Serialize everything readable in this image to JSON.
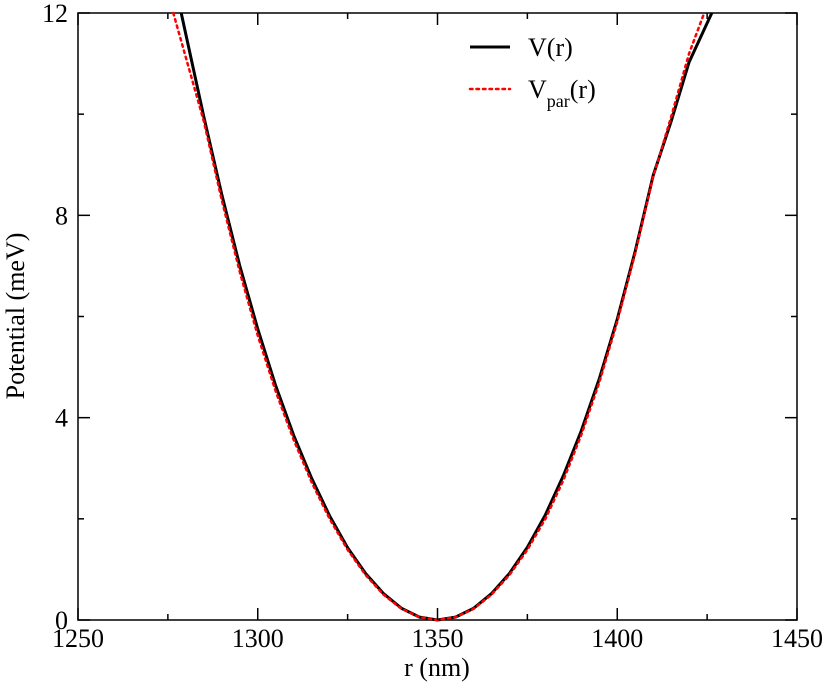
{
  "chart_data": {
    "type": "line",
    "title": "",
    "xlabel": "r (nm)",
    "ylabel": "Potential (meV)",
    "xlim": [
      1250,
      1450
    ],
    "ylim": [
      0,
      12
    ],
    "x_ticks": [
      1250,
      1300,
      1350,
      1400,
      1450
    ],
    "y_ticks": [
      0,
      4,
      8,
      12
    ],
    "x_tick_labels": [
      "1250",
      "1300",
      "1350",
      "1400",
      "1450"
    ],
    "y_tick_labels": [
      "0",
      "4",
      "8",
      "12"
    ],
    "grid": false,
    "legend_position": "top-right",
    "series": [
      {
        "name": "V(r)",
        "legend_main": "V",
        "legend_sub": "",
        "legend_tail": "(r)",
        "color": "#000000",
        "style": "solid",
        "x": [
          1278.7,
          1285,
          1290,
          1295,
          1300,
          1305,
          1310,
          1315,
          1320,
          1325,
          1330,
          1335,
          1340,
          1345,
          1350,
          1355,
          1360,
          1365,
          1370,
          1375,
          1380,
          1385,
          1390,
          1395,
          1400,
          1405,
          1410,
          1415,
          1420,
          1426.3
        ],
        "y": [
          12.0,
          9.95,
          8.41,
          7.0,
          5.75,
          4.63,
          3.65,
          2.8,
          2.06,
          1.43,
          0.92,
          0.52,
          0.23,
          0.057,
          0.0,
          0.057,
          0.23,
          0.52,
          0.92,
          1.44,
          2.08,
          2.85,
          3.74,
          4.77,
          5.95,
          7.29,
          8.79,
          9.86,
          11.03,
          12.0
        ]
      },
      {
        "name": "Vpar(r)",
        "legend_main": "V",
        "legend_sub": "par",
        "legend_tail": "(r)",
        "color": "#ff0000",
        "style": "dotted",
        "x": [
          1276.5,
          1285,
          1290,
          1295,
          1300,
          1305,
          1310,
          1315,
          1320,
          1325,
          1330,
          1335,
          1340,
          1345,
          1350,
          1355,
          1360,
          1365,
          1370,
          1375,
          1380,
          1385,
          1390,
          1395,
          1400,
          1405,
          1410,
          1415,
          1420,
          1424.2
        ],
        "y": [
          12.0,
          9.86,
          8.3,
          6.88,
          5.62,
          4.52,
          3.56,
          2.72,
          2.0,
          1.39,
          0.89,
          0.5,
          0.22,
          0.056,
          0.0,
          0.056,
          0.22,
          0.5,
          0.89,
          1.39,
          2.0,
          2.76,
          3.66,
          4.7,
          5.9,
          7.25,
          8.76,
          9.95,
          11.2,
          12.0
        ]
      }
    ]
  }
}
